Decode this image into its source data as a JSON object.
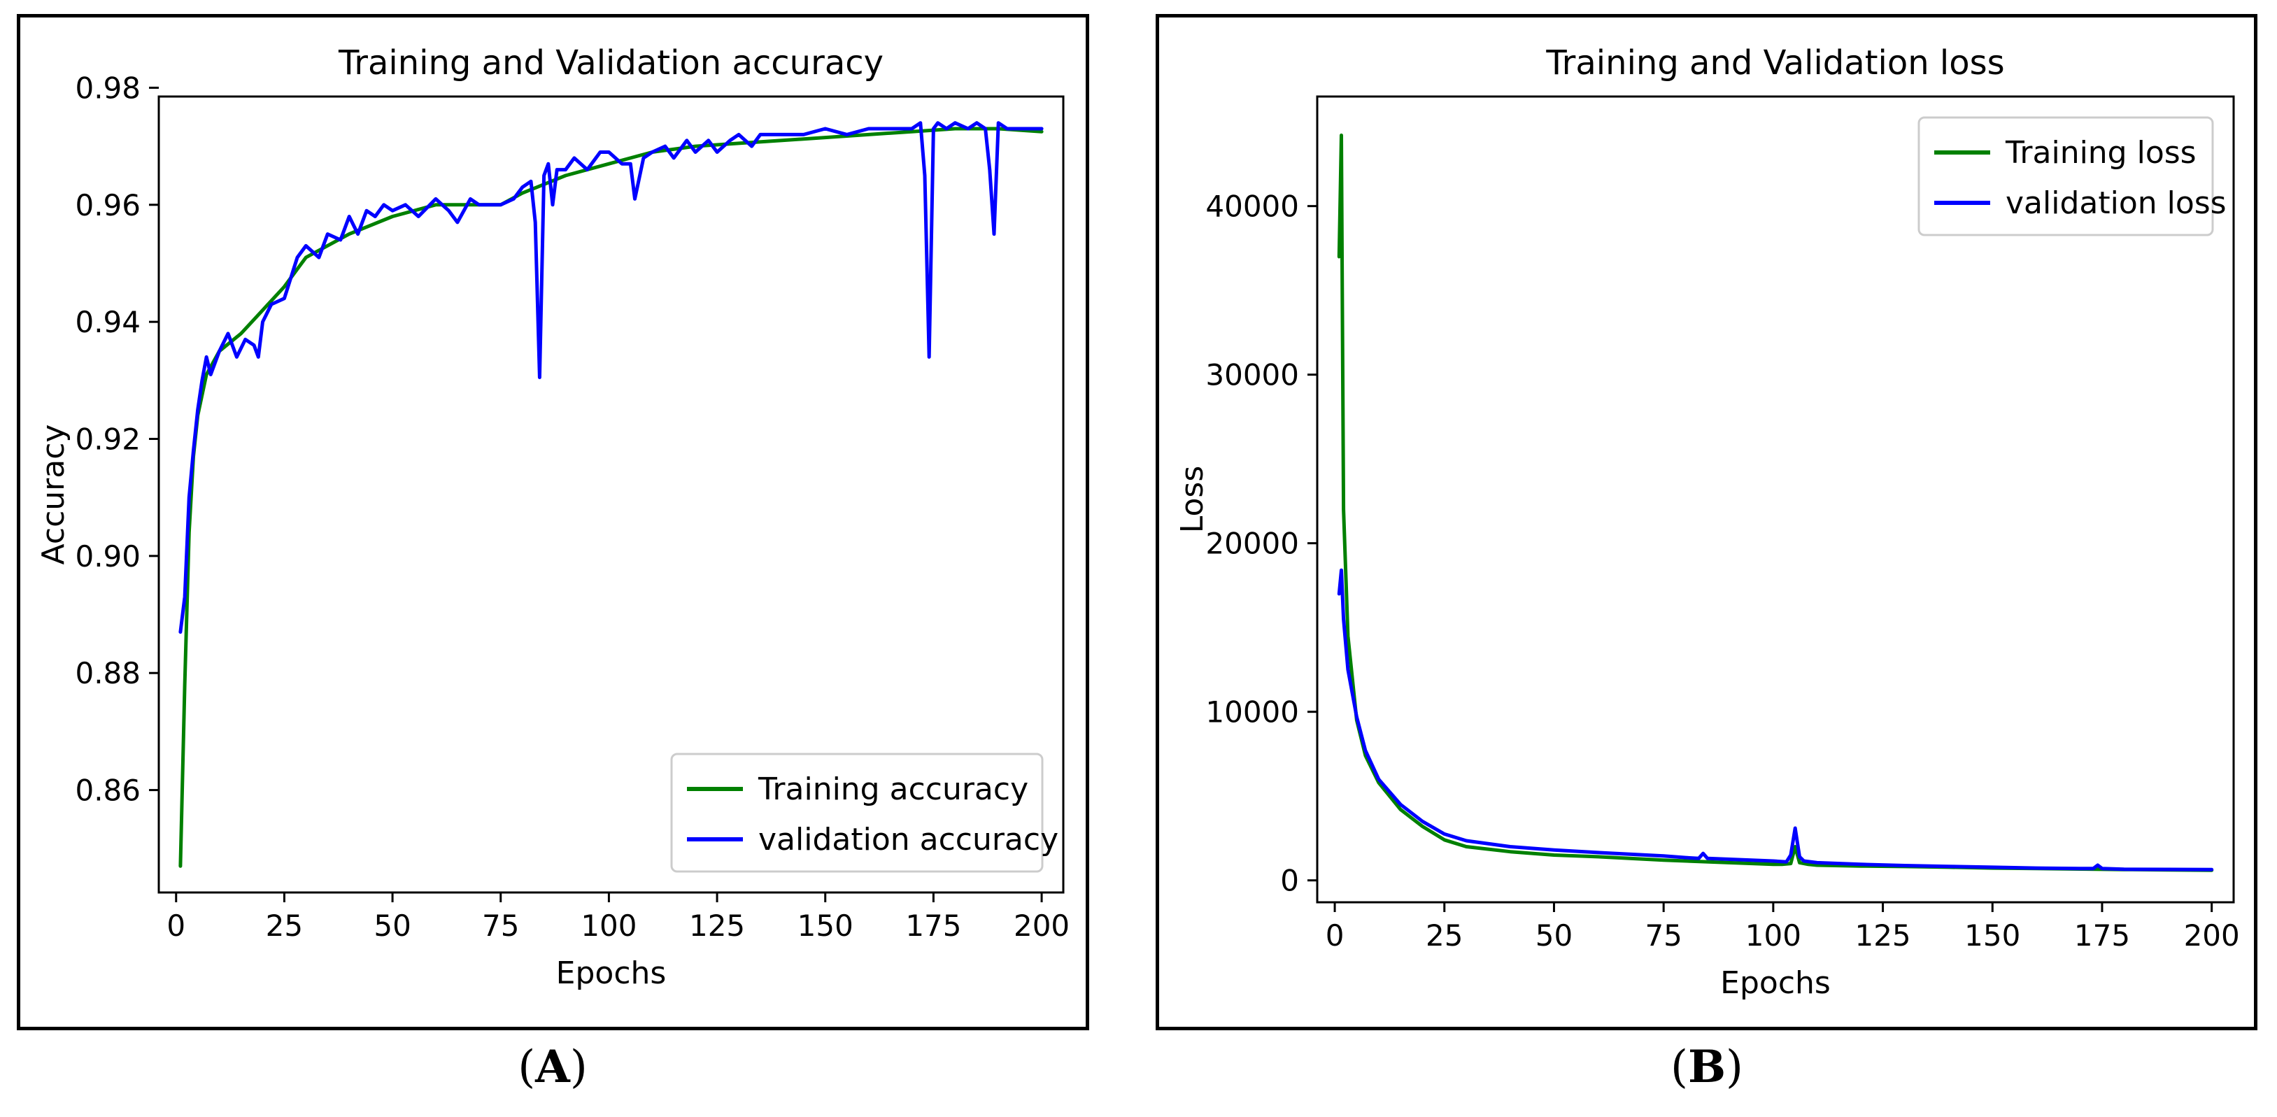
{
  "colors": {
    "train": "#008000",
    "val": "#0000ff",
    "axis": "#000000",
    "background": "#ffffff"
  },
  "captions": {
    "a_open": "(",
    "a_letter": "A",
    "a_close": ")",
    "b_open": "(",
    "b_letter": "B",
    "b_close": ")"
  },
  "chart_data": [
    {
      "type": "line",
      "title": "Training and Validation accuracy",
      "xlabel": "Epochs",
      "ylabel": "Accuracy",
      "xlim": [
        -4,
        205
      ],
      "ylim": [
        0.8425,
        0.9785
      ],
      "xticks": [
        0,
        25,
        50,
        75,
        100,
        125,
        150,
        175,
        200
      ],
      "yticks": [
        0.86,
        0.88,
        0.9,
        0.92,
        0.94,
        0.96,
        0.98
      ],
      "ytick_labels": [
        "0.86",
        "0.88",
        "0.90",
        "0.92",
        "0.94",
        "0.96",
        "0.98"
      ],
      "legend_position": "lower-right",
      "series": [
        {
          "name": "Training accuracy",
          "color_key": "train",
          "x": [
            1,
            2,
            3,
            4,
            5,
            7,
            10,
            15,
            20,
            25,
            30,
            40,
            50,
            60,
            75,
            80,
            90,
            100,
            110,
            120,
            130,
            140,
            150,
            160,
            170,
            180,
            190,
            200
          ],
          "y": [
            0.847,
            0.878,
            0.904,
            0.917,
            0.924,
            0.931,
            0.935,
            0.938,
            0.942,
            0.946,
            0.951,
            0.955,
            0.958,
            0.96,
            0.96,
            0.962,
            0.965,
            0.967,
            0.969,
            0.97,
            0.9705,
            0.971,
            0.9715,
            0.972,
            0.9725,
            0.973,
            0.973,
            0.9725
          ]
        },
        {
          "name": "validation accuracy",
          "color_key": "val",
          "x": [
            1,
            2,
            3,
            4,
            5,
            6,
            7,
            8,
            9,
            10,
            12,
            14,
            16,
            18,
            19,
            20,
            22,
            25,
            28,
            30,
            33,
            35,
            38,
            40,
            42,
            44,
            46,
            48,
            50,
            53,
            56,
            60,
            63,
            65,
            68,
            70,
            75,
            78,
            80,
            82,
            83,
            84,
            85,
            86,
            87,
            88,
            90,
            92,
            95,
            98,
            100,
            103,
            105,
            106,
            108,
            110,
            113,
            115,
            118,
            120,
            123,
            125,
            128,
            130,
            133,
            135,
            140,
            145,
            150,
            155,
            160,
            165,
            170,
            172,
            173,
            174,
            175,
            176,
            178,
            180,
            183,
            185,
            187,
            188,
            189,
            190,
            192,
            195,
            198,
            200
          ],
          "y": [
            0.887,
            0.893,
            0.91,
            0.918,
            0.925,
            0.93,
            0.934,
            0.931,
            0.933,
            0.935,
            0.938,
            0.934,
            0.937,
            0.936,
            0.934,
            0.94,
            0.943,
            0.944,
            0.951,
            0.953,
            0.951,
            0.955,
            0.954,
            0.958,
            0.955,
            0.959,
            0.958,
            0.96,
            0.959,
            0.96,
            0.958,
            0.961,
            0.959,
            0.957,
            0.961,
            0.96,
            0.96,
            0.961,
            0.963,
            0.964,
            0.957,
            0.9305,
            0.965,
            0.967,
            0.96,
            0.966,
            0.966,
            0.968,
            0.966,
            0.969,
            0.969,
            0.967,
            0.967,
            0.961,
            0.968,
            0.969,
            0.97,
            0.968,
            0.971,
            0.969,
            0.971,
            0.969,
            0.971,
            0.972,
            0.97,
            0.972,
            0.972,
            0.972,
            0.973,
            0.972,
            0.973,
            0.973,
            0.973,
            0.974,
            0.965,
            0.934,
            0.973,
            0.974,
            0.973,
            0.974,
            0.973,
            0.974,
            0.973,
            0.966,
            0.955,
            0.974,
            0.973,
            0.973,
            0.973,
            0.973
          ]
        }
      ]
    },
    {
      "type": "line",
      "title": "Training and Validation loss",
      "xlabel": "Epochs",
      "ylabel": "Loss",
      "xlim": [
        -4,
        205
      ],
      "ylim": [
        -1300,
        46500
      ],
      "xticks": [
        0,
        25,
        50,
        75,
        100,
        125,
        150,
        175,
        200
      ],
      "yticks": [
        0,
        10000,
        20000,
        30000,
        40000
      ],
      "ytick_labels": [
        "0",
        "10000",
        "20000",
        "30000",
        "40000"
      ],
      "legend_position": "upper-right",
      "series": [
        {
          "name": "Training loss",
          "color_key": "train",
          "x": [
            1,
            1.5,
            2,
            3,
            5,
            7,
            10,
            15,
            20,
            25,
            30,
            40,
            50,
            60,
            75,
            90,
            100,
            102,
            104,
            105,
            106,
            108,
            110,
            120,
            130,
            140,
            150,
            160,
            170,
            180,
            190,
            200
          ],
          "y": [
            37000,
            44200,
            22000,
            14500,
            9500,
            7400,
            5800,
            4200,
            3200,
            2400,
            2000,
            1700,
            1500,
            1400,
            1200,
            1050,
            950,
            950,
            1000,
            2000,
            1050,
            950,
            900,
            850,
            820,
            780,
            730,
            700,
            670,
            640,
            620,
            600
          ]
        },
        {
          "name": "validation loss",
          "color_key": "val",
          "x": [
            1,
            1.5,
            2,
            3,
            5,
            7,
            10,
            15,
            20,
            25,
            30,
            40,
            50,
            60,
            75,
            80,
            83,
            84,
            85,
            90,
            100,
            103,
            104,
            105,
            106,
            107,
            110,
            120,
            130,
            140,
            150,
            160,
            170,
            173,
            174,
            175,
            180,
            190,
            200
          ],
          "y": [
            17000,
            18400,
            15500,
            12500,
            9700,
            7700,
            6000,
            4500,
            3500,
            2750,
            2350,
            2000,
            1800,
            1650,
            1450,
            1350,
            1300,
            1600,
            1300,
            1250,
            1150,
            1100,
            1500,
            3100,
            1400,
            1150,
            1050,
            950,
            880,
            830,
            780,
            730,
            700,
            700,
            900,
            700,
            660,
            650,
            640
          ]
        }
      ]
    }
  ]
}
